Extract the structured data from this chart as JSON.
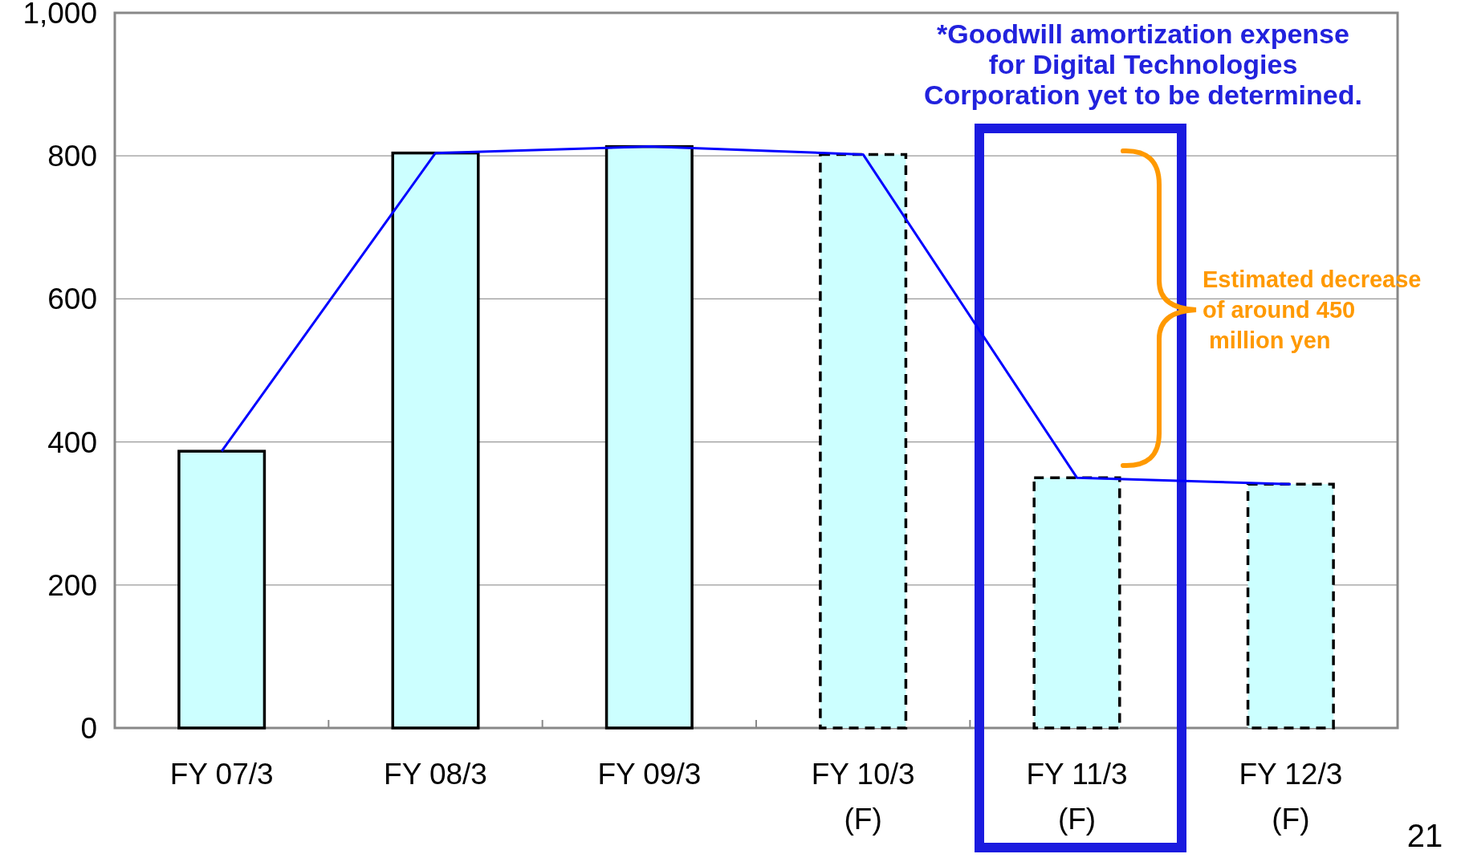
{
  "chart_data": {
    "type": "bar",
    "categories": [
      "FY 07/3",
      "FY 08/3",
      "FY 09/3",
      "FY 10/3\n(F)",
      "FY 11/3\n(F)",
      "FY 12/3\n(F)"
    ],
    "series": [
      {
        "color": "#ccffff",
        "line_style": "solid",
        "values": [
          387,
          804,
          813,
          null,
          null,
          null
        ]
      },
      {
        "color": "#ccffff",
        "line_style": "dashed",
        "values": [
          null,
          null,
          null,
          802,
          350,
          341
        ]
      },
      {
        "type": "line",
        "color": "#0000ff",
        "values": [
          387,
          804,
          813,
          802,
          350,
          341
        ]
      }
    ],
    "ylim": [
      0,
      1000
    ],
    "yticks": [
      0,
      200,
      400,
      600,
      800,
      {
        "value": 1000,
        "label": "1,000"
      }
    ],
    "grid": "y",
    "annotations": [
      "*Goodwill amortization expense\nfor Digital Technologies\nCorporation yet to be determined.",
      "Estimated decrease\nof around 450\n million yen",
      "21"
    ]
  }
}
